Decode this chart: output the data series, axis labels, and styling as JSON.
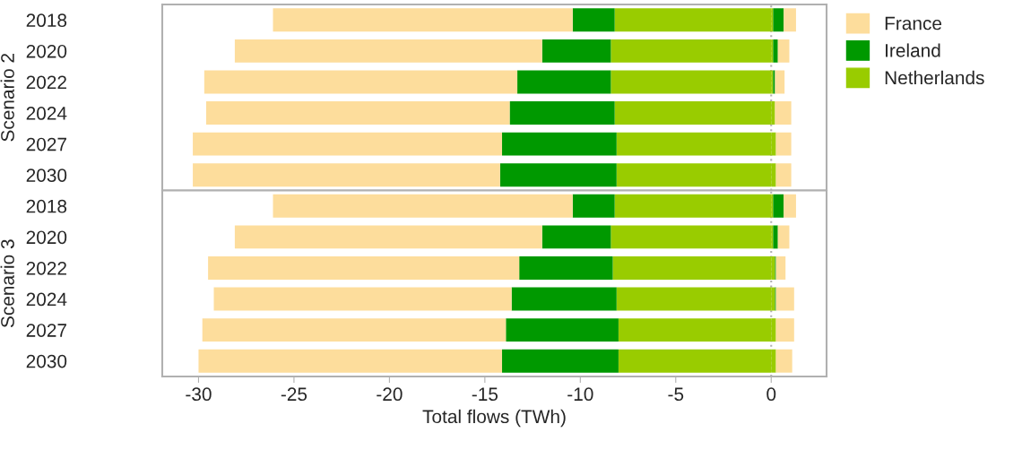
{
  "chart_data": [
    {
      "type": "bar",
      "orientation": "horizontal",
      "stacked": true,
      "ylabel": "Scenario 2",
      "categories": [
        "2018",
        "2020",
        "2022",
        "2024",
        "2027",
        "2030"
      ],
      "series": [
        {
          "name": "Netherlands",
          "color": "#99cc00",
          "values": [
            -8.2,
            -8.4,
            -8.4,
            -8.2,
            -8.1,
            -8.1
          ]
        },
        {
          "name": "Ireland",
          "color": "#009900",
          "values": [
            -2.2,
            -3.6,
            -4.9,
            -5.5,
            -6.0,
            -6.1
          ]
        },
        {
          "name": "France",
          "color": "#fddd9c",
          "values": [
            -15.7,
            -16.1,
            -16.4,
            -15.9,
            -16.2,
            -16.1
          ]
        },
        {
          "color": "#99cc00",
          "values": [
            0.1,
            0.1,
            0.1,
            0.2,
            0.25,
            0.25
          ]
        },
        {
          "color": "#009900",
          "values": [
            0.55,
            0.25,
            0.1,
            null,
            null,
            null
          ]
        },
        {
          "color": "#fddd9c",
          "values": [
            0.65,
            0.6,
            0.5,
            0.85,
            0.8,
            0.8
          ]
        }
      ],
      "xlim": [
        -31.9,
        2.9
      ],
      "xticks": [
        -30,
        -25,
        -20,
        -15,
        -10,
        -5,
        0
      ],
      "tick_labels": "y",
      "ref_lines": [
        {
          "axis": "x",
          "value": 0,
          "color": "#b0b0b0",
          "line_style": "dotted"
        }
      ],
      "grid": false,
      "legend": "right"
    },
    {
      "type": "bar",
      "orientation": "horizontal",
      "stacked": true,
      "ylabel": "Scenario 3",
      "xlabel": "Total flows (TWh)",
      "categories": [
        "2018",
        "2020",
        "2022",
        "2024",
        "2027",
        "2030"
      ],
      "series": [
        {
          "color": "#99cc00",
          "values": [
            -8.2,
            -8.4,
            -8.3,
            -8.1,
            -8.0,
            -8.0
          ]
        },
        {
          "color": "#009900",
          "values": [
            -2.2,
            -3.6,
            -4.9,
            -5.5,
            -5.9,
            -6.1
          ]
        },
        {
          "color": "#fddd9c",
          "values": [
            -15.7,
            -16.1,
            -16.3,
            -15.6,
            -15.9,
            -15.9
          ]
        },
        {
          "color": "#99cc00",
          "values": [
            0.1,
            0.1,
            0.2,
            0.2,
            0.25,
            0.25
          ]
        },
        {
          "color": "#009900",
          "values": [
            0.55,
            0.25,
            0.05,
            0.05,
            null,
            null
          ]
        },
        {
          "color": "#fddd9c",
          "values": [
            0.65,
            0.6,
            0.5,
            0.95,
            0.95,
            0.85
          ]
        }
      ],
      "xlim": [
        -31.9,
        2.9
      ],
      "xticks": [
        -30,
        -25,
        -20,
        -15,
        -10,
        -5,
        0
      ],
      "ref_lines": [
        {
          "axis": "x",
          "value": 0,
          "color": "#b0b0b0",
          "line_style": "dotted"
        }
      ],
      "grid": false
    }
  ]
}
